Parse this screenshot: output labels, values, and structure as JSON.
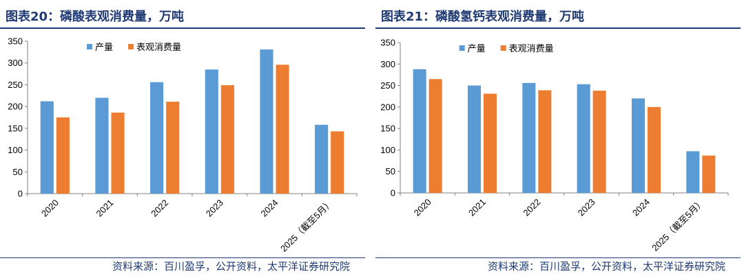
{
  "colors": {
    "production": "#5b9bd5",
    "consumption": "#ed7d31",
    "title": "#1f3a73"
  },
  "charts": [
    {
      "title": "图表20：磷酸表观消费量，万吨",
      "source": "资料来源：百川盈孚，公开资料，太平洋证券研究院"
    },
    {
      "title": "图表21：磷酸氢钙表观消费量，万吨",
      "source": "资料来源：百川盈孚，公开资料，太平洋证券研究院"
    }
  ],
  "chart_data": [
    {
      "type": "bar",
      "title": "图表20：磷酸表观消费量，万吨",
      "categories": [
        "2020",
        "2021",
        "2022",
        "2023",
        "2024",
        "2025（截至5月）"
      ],
      "series": [
        {
          "name": "产量",
          "values": [
            212,
            220,
            256,
            285,
            331,
            158
          ]
        },
        {
          "name": "表观消费量",
          "values": [
            175,
            186,
            211,
            249,
            296,
            143
          ]
        }
      ],
      "ylim": [
        0,
        350
      ],
      "yticks": [
        0,
        50,
        100,
        150,
        200,
        250,
        300,
        350
      ],
      "legend": "top-center",
      "grid": false
    },
    {
      "type": "bar",
      "title": "图表21：磷酸氢钙表观消费量，万吨",
      "categories": [
        "2020",
        "2021",
        "2022",
        "2023",
        "2024",
        "2025（截至5月）"
      ],
      "series": [
        {
          "name": "产量",
          "values": [
            288,
            250,
            256,
            253,
            220,
            97
          ]
        },
        {
          "name": "表观消费量",
          "values": [
            265,
            231,
            239,
            238,
            200,
            87
          ]
        }
      ],
      "ylim": [
        0,
        350
      ],
      "yticks": [
        0,
        50,
        100,
        150,
        200,
        250,
        300,
        350
      ],
      "legend": "top-center",
      "grid": false
    }
  ]
}
